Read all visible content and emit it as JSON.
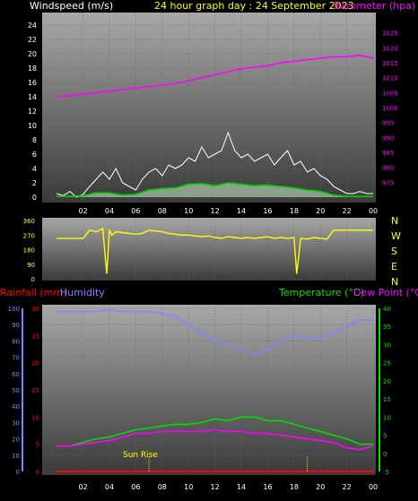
{
  "header": {
    "left": "Windspeed (m/s)",
    "center": "24 hour graph day : 24 September 2023",
    "right": "Barometer (hpa)"
  },
  "colors": {
    "bg": "#000000",
    "plot_top": "#a8a8a8",
    "plot_bottom": "#3c3c3c",
    "grid": "#666666",
    "axis_text": "#ffffff",
    "title": "#ffff00",
    "baro": "#ff00ff",
    "wind_gust": "#ffffff",
    "wind_avg": "#00cc00",
    "wind_fill": "#c8f0c8",
    "direction": "#ffff00",
    "rain": "#ff0000",
    "humidity": "#7b86ff",
    "temp": "#00e000",
    "dew": "#ff00ff",
    "sunrise": "#ffff00"
  },
  "chart_data": [
    {
      "type": "line",
      "x_ticks": [
        "02",
        "04",
        "06",
        "08",
        "10",
        "12",
        "14",
        "16",
        "18",
        "20",
        "22",
        "00"
      ],
      "ylim": [
        0,
        25
      ],
      "y_ticks": [
        0,
        2,
        4,
        6,
        8,
        10,
        12,
        14,
        16,
        18,
        20,
        22,
        24
      ],
      "y2lim": [
        970,
        1030
      ],
      "y2_ticks": [
        975,
        980,
        985,
        990,
        995,
        1000,
        1005,
        1010,
        1015,
        1020,
        1025
      ],
      "series": [
        {
          "name": "Windspeed",
          "role": "gust",
          "x": [
            0,
            0.5,
            1,
            1.5,
            2,
            2.5,
            3,
            3.5,
            4,
            4.5,
            5,
            5.5,
            6,
            6.5,
            7,
            7.5,
            8,
            8.5,
            9,
            9.5,
            10,
            10.5,
            11,
            11.5,
            12,
            12.5,
            13,
            13.5,
            14,
            14.5,
            15,
            15.5,
            16,
            16.5,
            17,
            17.5,
            18,
            18.5,
            19,
            19.5,
            20,
            20.5,
            21,
            21.5,
            22,
            22.5,
            23,
            23.5,
            24
          ],
          "values": [
            0.5,
            0.2,
            0.8,
            0,
            0.4,
            1.5,
            2.5,
            3.5,
            2.5,
            4.0,
            2.0,
            1.5,
            1.0,
            2.5,
            3.5,
            4.0,
            3.0,
            4.5,
            4.0,
            4.5,
            5.5,
            5.0,
            7.0,
            5.5,
            6.0,
            6.5,
            9.0,
            6.5,
            5.5,
            6.0,
            5.0,
            5.5,
            6.0,
            4.5,
            5.5,
            6.5,
            4.5,
            5.0,
            3.5,
            4.0,
            3.0,
            2.5,
            1.5,
            1.0,
            0.5,
            0.5,
            0.8,
            0.5,
            0.5
          ]
        },
        {
          "name": "Windspeed",
          "role": "average",
          "x": [
            0,
            1,
            2,
            3,
            4,
            5,
            6,
            7,
            8,
            9,
            10,
            11,
            12,
            13,
            14,
            15,
            16,
            17,
            18,
            19,
            20,
            21,
            22,
            23,
            24
          ],
          "values": [
            0.1,
            0.1,
            0.2,
            0.6,
            0.6,
            0.3,
            0.4,
            1.0,
            1.2,
            1.3,
            1.8,
            1.9,
            1.6,
            2.0,
            1.8,
            1.6,
            1.7,
            1.5,
            1.3,
            1.0,
            0.8,
            0.3,
            0.1,
            0.1,
            0.1
          ]
        },
        {
          "name": "Barometer",
          "axis": "right",
          "x": [
            0,
            1,
            2,
            3,
            4,
            5,
            6,
            7,
            8,
            9,
            10,
            11,
            12,
            13,
            14,
            15,
            16,
            17,
            18,
            19,
            20,
            21,
            22,
            23,
            24
          ],
          "values": [
            1003.5,
            1004.0,
            1004.5,
            1005.0,
            1005.5,
            1006.0,
            1006.5,
            1007.0,
            1007.5,
            1008.0,
            1009.0,
            1010.0,
            1011.0,
            1012.0,
            1013.0,
            1013.5,
            1014.0,
            1015.0,
            1015.5,
            1016.0,
            1016.5,
            1017.0,
            1017.0,
            1017.5,
            1016.5
          ]
        }
      ]
    },
    {
      "type": "line",
      "right_labels": [
        "N",
        "W",
        "S",
        "E",
        "N"
      ],
      "ylim": [
        0,
        360
      ],
      "y_ticks": [
        0,
        90,
        180,
        270,
        360
      ],
      "series": [
        {
          "name": "Wind Direction",
          "x": [
            0,
            0.5,
            1,
            1.5,
            2,
            2.5,
            3,
            3.5,
            3.8,
            4,
            4.2,
            4.5,
            5,
            5.5,
            6,
            6.5,
            7,
            7.5,
            8,
            8.5,
            9,
            9.5,
            10,
            10.5,
            11,
            11.5,
            12,
            12.5,
            13,
            13.5,
            14,
            14.5,
            15,
            15.5,
            16,
            16.5,
            17,
            17.5,
            18,
            18.2,
            18.5,
            19,
            19.5,
            20,
            20.5,
            21,
            21.5,
            22,
            22.5,
            23,
            23.5,
            24
          ],
          "values": [
            250,
            250,
            250,
            250,
            250,
            300,
            290,
            310,
            30,
            300,
            270,
            290,
            285,
            280,
            275,
            280,
            300,
            295,
            290,
            280,
            275,
            270,
            270,
            265,
            260,
            265,
            255,
            250,
            260,
            255,
            250,
            255,
            250,
            255,
            260,
            250,
            255,
            250,
            255,
            30,
            250,
            245,
            255,
            250,
            245,
            300,
            300,
            300,
            300,
            300,
            300,
            300
          ]
        }
      ]
    },
    {
      "type": "line",
      "header_left": [
        "Rainfall (mm)",
        "Humidity"
      ],
      "header_right": [
        "Temperature (°C)",
        "Dew Point (°C)"
      ],
      "annotation": "Sun Rise",
      "y_humidity_ticks": [
        0,
        10,
        20,
        30,
        40,
        50,
        60,
        70,
        80,
        90,
        100
      ],
      "y_rain_ticks": [
        0,
        5,
        10,
        15,
        20,
        25,
        30
      ],
      "y_temp_ticks": [
        -5,
        0,
        5,
        10,
        15,
        20,
        25,
        30,
        35,
        40
      ],
      "ylim_humidity": [
        0,
        100
      ],
      "ylim_rain": [
        0,
        30
      ],
      "ylim_temp": [
        -5,
        40
      ],
      "series": [
        {
          "name": "Humidity",
          "x": [
            0,
            1,
            2,
            3,
            4,
            5,
            6,
            7,
            8,
            9,
            10,
            11,
            12,
            13,
            14,
            15,
            16,
            17,
            18,
            19,
            20,
            21,
            22,
            23,
            24
          ],
          "values": [
            98,
            98,
            98,
            98,
            99,
            98,
            98,
            98,
            97,
            95,
            90,
            85,
            80,
            78,
            74,
            72,
            75,
            80,
            83,
            82,
            82,
            85,
            89,
            93,
            93
          ]
        },
        {
          "name": "Rainfall",
          "x": [
            0,
            24
          ],
          "values": [
            0,
            0
          ]
        },
        {
          "name": "Temperature",
          "x": [
            0,
            1,
            2,
            3,
            4,
            5,
            6,
            7,
            8,
            9,
            10,
            11,
            12,
            13,
            14,
            15,
            16,
            17,
            18,
            19,
            20,
            21,
            22,
            23,
            24
          ],
          "values": [
            2,
            2,
            3,
            4,
            4.5,
            5.5,
            6.5,
            7,
            7.5,
            8,
            8,
            8.5,
            9.5,
            9,
            10,
            10,
            9,
            9,
            8,
            7,
            6,
            5,
            4,
            2.5,
            2.5
          ]
        },
        {
          "name": "Dew Point",
          "x": [
            0,
            1,
            2,
            3,
            4,
            5,
            6,
            7,
            8,
            9,
            10,
            11,
            12,
            13,
            14,
            15,
            16,
            17,
            18,
            19,
            20,
            21,
            22,
            23,
            24
          ],
          "values": [
            2,
            2,
            2.5,
            3,
            3.5,
            4.5,
            5.5,
            5.5,
            6,
            6,
            6,
            6,
            6.5,
            6,
            6,
            5.5,
            5.5,
            5,
            4.5,
            4,
            3.5,
            3,
            1.5,
            1,
            2
          ]
        }
      ]
    }
  ]
}
